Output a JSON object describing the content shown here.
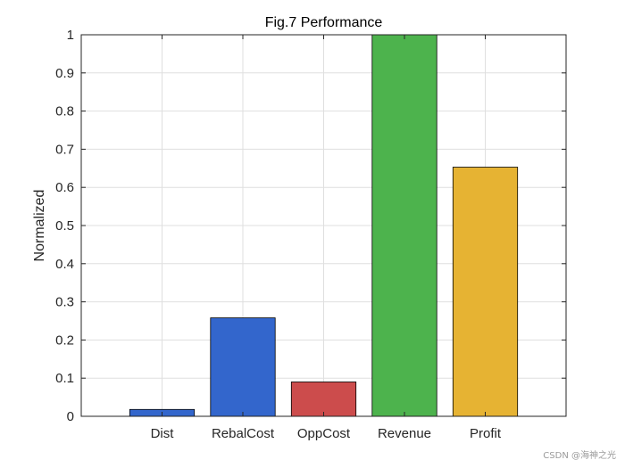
{
  "chart_data": {
    "type": "bar",
    "title": "Fig.7 Performance",
    "xlabel": "",
    "ylabel": "Normalized",
    "categories": [
      "Dist",
      "RebalCost",
      "OppCost",
      "Revenue",
      "Profit"
    ],
    "values": [
      0.018,
      0.258,
      0.09,
      1.0,
      0.653
    ],
    "colors": [
      "#3366cc",
      "#3366cc",
      "#cc4c4c",
      "#4db34d",
      "#e6b333"
    ],
    "ylim": [
      0,
      1
    ],
    "yticks": [
      "0",
      "0.1",
      "0.2",
      "0.3",
      "0.4",
      "0.5",
      "0.6",
      "0.7",
      "0.8",
      "0.9",
      "1"
    ],
    "grid": true,
    "box": true
  },
  "watermark": "CSDN @海神之光"
}
